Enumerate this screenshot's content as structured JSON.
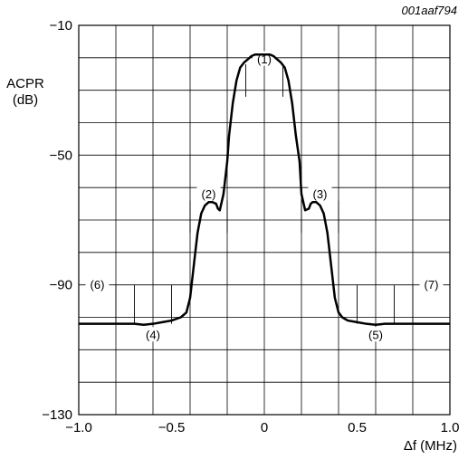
{
  "figure_id": "001aaf794",
  "chart_data": {
    "type": "line",
    "xlabel": "Δf (MHz)",
    "ylabel_line1": "ACPR",
    "ylabel_line2": "(dB)",
    "xlim": [
      -1.0,
      1.0
    ],
    "ylim": [
      -130,
      -10
    ],
    "grid": true,
    "x_ticks": [
      {
        "v": -1.0,
        "label": "−1.0"
      },
      {
        "v": -0.5,
        "label": "−0.5"
      },
      {
        "v": 0,
        "label": "0"
      },
      {
        "v": 0.5,
        "label": "0.5"
      },
      {
        "v": 1.0,
        "label": "1.0"
      }
    ],
    "y_ticks": [
      {
        "v": -10,
        "label": "−10"
      },
      {
        "v": -50,
        "label": "−50"
      },
      {
        "v": -90,
        "label": "−90"
      },
      {
        "v": -130,
        "label": "−130"
      }
    ],
    "series": [
      {
        "x": [
          -1.0,
          -0.9,
          -0.8,
          -0.7,
          -0.65,
          -0.6,
          -0.55,
          -0.5,
          -0.45,
          -0.42,
          -0.4,
          -0.38,
          -0.36,
          -0.34,
          -0.32,
          -0.3,
          -0.28,
          -0.26,
          -0.25,
          -0.24,
          -0.22,
          -0.2,
          -0.19,
          -0.17,
          -0.15,
          -0.13,
          -0.11,
          -0.09,
          -0.07,
          -0.05,
          -0.03,
          -0.01,
          0.01,
          0.03,
          0.05,
          0.07,
          0.09,
          0.11,
          0.13,
          0.15,
          0.17,
          0.19,
          0.2,
          0.22,
          0.24,
          0.25,
          0.26,
          0.28,
          0.3,
          0.32,
          0.34,
          0.36,
          0.38,
          0.4,
          0.42,
          0.45,
          0.5,
          0.55,
          0.6,
          0.65,
          0.7,
          0.8,
          0.9,
          1.0
        ],
        "y": [
          -102,
          -102,
          -102,
          -102,
          -102.3,
          -102,
          -101.5,
          -101,
          -100,
          -98.5,
          -94,
          -84,
          -74,
          -68,
          -65.5,
          -64.5,
          -64.5,
          -65,
          -66.5,
          -67,
          -62,
          -52,
          -44,
          -34,
          -27,
          -23,
          -21.5,
          -20.5,
          -19.5,
          -19,
          -19,
          -19,
          -19,
          -19,
          -19.5,
          -20.5,
          -21.5,
          -23,
          -27,
          -34,
          -44,
          -52,
          -62,
          -67,
          -66.5,
          -65,
          -64.5,
          -64.5,
          -65.5,
          -68,
          -74,
          -84,
          -94,
          -98.5,
          -100,
          -101,
          -101.5,
          -102,
          -102.3,
          -102,
          -102,
          -102,
          -102,
          -102
        ]
      }
    ],
    "annotations": [
      {
        "label": "(1)",
        "x": 0,
        "y": -20.5,
        "x1": -0.1,
        "x2": 0.1,
        "y1": -22,
        "y2": -32
      },
      {
        "label": "(2)",
        "x": -0.3,
        "y": -62,
        "x1": -0.4,
        "x2": -0.2,
        "y1": -64,
        "y2": -74
      },
      {
        "label": "(3)",
        "x": 0.3,
        "y": -62,
        "x1": 0.2,
        "x2": 0.4,
        "y1": -64,
        "y2": -74
      },
      {
        "label": "(4)",
        "x": -0.6,
        "y": -105.5,
        "x1": -0.7,
        "x2": -0.5,
        "y1": -90,
        "y2": -102
      },
      {
        "label": "(5)",
        "x": 0.6,
        "y": -105.5,
        "x1": 0.5,
        "x2": 0.7,
        "y1": -90,
        "y2": -102
      },
      {
        "label": "(6)",
        "x": -0.9,
        "y": -90,
        "x1": -1.0,
        "x2": -0.8,
        "y1": -90,
        "y2": -102
      },
      {
        "label": "(7)",
        "x": 0.9,
        "y": -90,
        "x1": 0.8,
        "x2": 1.0,
        "y1": -90,
        "y2": -102
      }
    ]
  }
}
